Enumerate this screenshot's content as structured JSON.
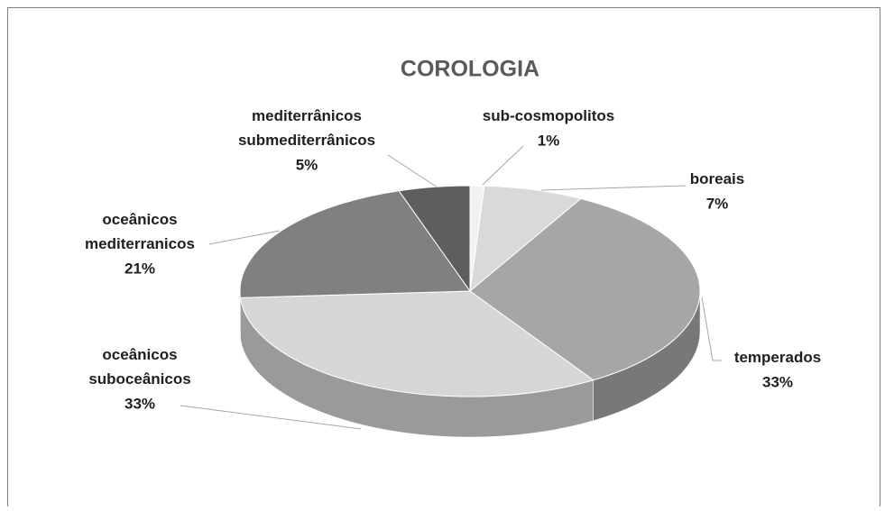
{
  "chart_data": {
    "type": "pie",
    "title": "COROLOGIA",
    "categories": [
      "sub-cosmopolitos",
      "boreais",
      "temperados",
      "oceânicos suboceânicos",
      "oceânicos mediterranicos",
      "mediterrânicos submediterrânicos"
    ],
    "values": [
      1,
      7,
      33,
      33,
      21,
      5
    ],
    "value_labels": [
      "1%",
      "7%",
      "33%",
      "33%",
      "21%",
      "5%"
    ],
    "colors": [
      "#f2f2f2",
      "#d9d9d9",
      "#a6a6a6",
      "#d6d6d6",
      "#808080",
      "#5e5e5e"
    ]
  }
}
